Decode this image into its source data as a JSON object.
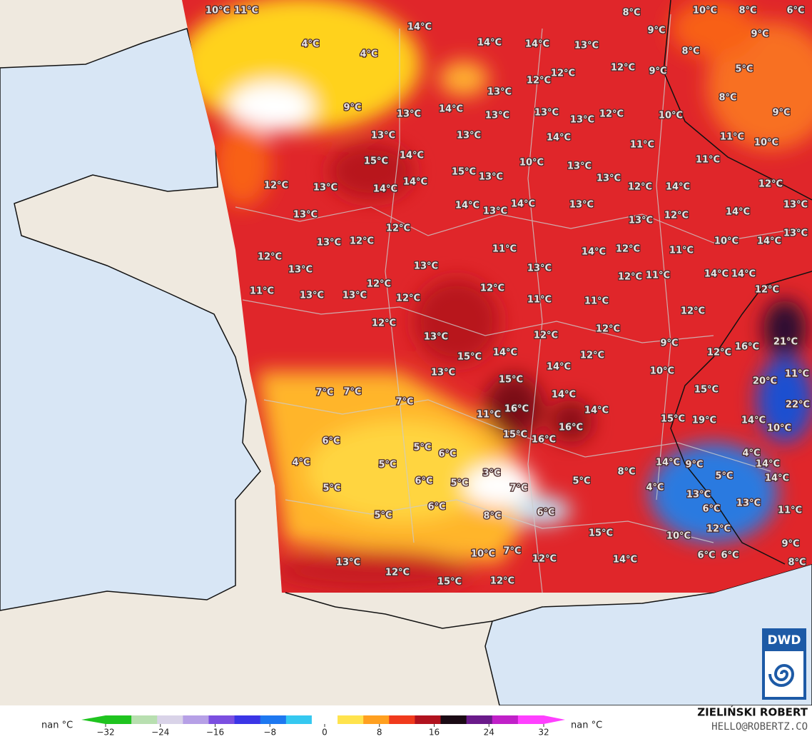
{
  "map": {
    "labels": [
      "10°C",
      "11°C",
      "8°C",
      "10°C",
      "8°C",
      "6°C",
      "14°C",
      "9°C",
      "9°C",
      "4°C",
      "4°C",
      "14°C",
      "14°C",
      "13°C",
      "8°C",
      "12°C",
      "12°C",
      "12°C",
      "9°C",
      "5°C",
      "13°C",
      "8°C",
      "9°C",
      "14°C",
      "13°C",
      "13°C",
      "13°C",
      "13°C",
      "12°C",
      "10°C",
      "9°C",
      "13°C",
      "13°C",
      "14°C",
      "11°C",
      "10°C",
      "14°C",
      "15°C",
      "11°C",
      "10°C",
      "13°C",
      "11°C",
      "14°C",
      "15°C",
      "13°C",
      "13°C",
      "12°C",
      "14°C",
      "12°C",
      "12°C",
      "13°C",
      "14°C",
      "14°C",
      "13°C",
      "14°C",
      "13°C",
      "14°C",
      "13°C",
      "13°C",
      "12°C",
      "12°C",
      "13°C",
      "13°C",
      "12°C",
      "13°C",
      "10°C",
      "14°C",
      "12°C",
      "11°C",
      "14°C",
      "12°C",
      "11°C",
      "13°C",
      "13°C",
      "13°C",
      "12°C",
      "11°C",
      "14°C",
      "14°C",
      "11°C",
      "13°C",
      "13°C",
      "12°C",
      "12°C",
      "12°C",
      "11°C",
      "11°C",
      "12°C",
      "12°C",
      "12°C",
      "12°C",
      "13°C",
      "12°C",
      "9°C",
      "21°C",
      "16°C",
      "15°C",
      "14°C",
      "12°C",
      "12°C",
      "13°C",
      "15°C",
      "14°C",
      "10°C",
      "11°C",
      "20°C",
      "7°C",
      "7°C",
      "7°C",
      "14°C",
      "15°C",
      "22°C",
      "11°C",
      "16°C",
      "16°C",
      "14°C",
      "15°C",
      "19°C",
      "14°C",
      "10°C",
      "6°C",
      "5°C",
      "6°C",
      "15°C",
      "16°C",
      "4°C",
      "4°C",
      "5°C",
      "14°C",
      "9°C",
      "14°C",
      "3°C",
      "6°C",
      "5°C",
      "8°C",
      "5°C",
      "14°C",
      "5°C",
      "7°C",
      "5°C",
      "4°C",
      "13°C",
      "6°C",
      "5°C",
      "8°C",
      "6°C",
      "6°C",
      "13°C",
      "11°C",
      "12°C",
      "10°C",
      "15°C",
      "10°C",
      "7°C",
      "12°C",
      "14°C",
      "6°C",
      "6°C",
      "9°C",
      "8°C",
      "13°C",
      "12°C",
      "15°C",
      "12°C"
    ],
    "colorbar": {
      "left_label": "nan °C",
      "right_label": "nan °C",
      "lim": [
        -32,
        32
      ],
      "ticks": [
        {
          "value": -32,
          "label": "−32"
        },
        {
          "value": -24,
          "label": "−24"
        },
        {
          "value": -16,
          "label": "−16"
        },
        {
          "value": -8,
          "label": "−8"
        },
        0,
        8,
        16,
        24,
        32
      ],
      "colors": [
        "#1fc41f",
        "#b8dfb0",
        "#d9d3e8",
        "#b6a0e6",
        "#7b4fe0",
        "#3b35e6",
        "#1e78f0",
        "#35c8f0",
        "#ffffff",
        "#ffe34d",
        "#ffa020",
        "#f03a1c",
        "#b0121e",
        "#1a0a14",
        "#6a1a8a",
        "#c020c8",
        "#ff40ff"
      ]
    },
    "credit": {
      "name": "ZIELIŃSKI ROBERT",
      "email": "HELLO@ROBERTZ.CO",
      "logo": "DWD"
    }
  }
}
